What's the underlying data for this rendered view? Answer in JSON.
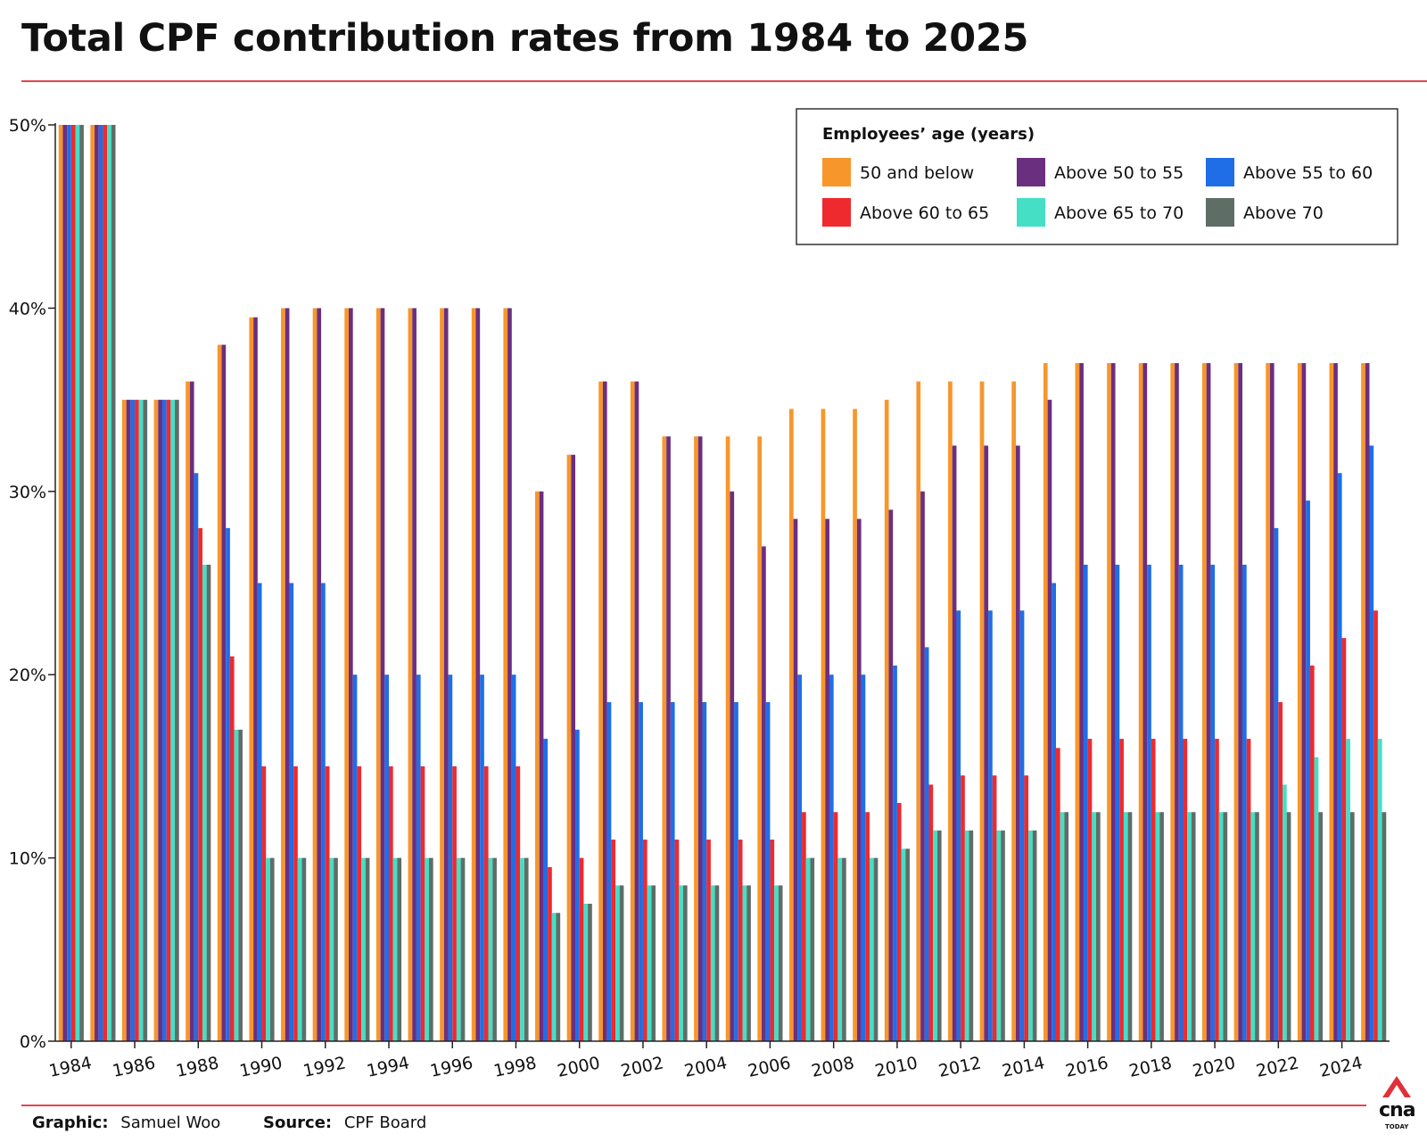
{
  "title": "Total CPF contribution rates from 1984 to 2025",
  "credits": {
    "graphic_label": "Graphic:",
    "graphic_value": "Samuel Woo",
    "source_label": "Source:",
    "source_value": "CPF Board"
  },
  "logo": {
    "text": "cna",
    "sub": "TODAY",
    "color": "#e0313a"
  },
  "chart_data": {
    "type": "bar",
    "title": "Total CPF contribution rates from 1984 to 2025",
    "xlabel": "",
    "ylabel": "",
    "ylim": [
      0,
      50
    ],
    "yticks": [
      "0%",
      "10%",
      "20%",
      "30%",
      "40%",
      "50%"
    ],
    "grid": false,
    "legend_title": "Employees’ age (years)",
    "legend_position": "top-right",
    "categories": [
      "1984",
      "1985",
      "1986",
      "1987",
      "1988",
      "1989",
      "1990",
      "1991",
      "1992",
      "1993",
      "1994",
      "1995",
      "1996",
      "1997",
      "1998",
      "1999",
      "2000",
      "2001",
      "2002",
      "2003",
      "2004",
      "2005",
      "2006",
      "2007",
      "2008",
      "2009",
      "2010",
      "2011",
      "2012",
      "2013",
      "2014",
      "2015",
      "2016",
      "2017",
      "2018",
      "2019",
      "2020",
      "2021",
      "2022",
      "2023",
      "2024",
      "2025"
    ],
    "xtick_labels": [
      "1984",
      "1986",
      "1988",
      "1990",
      "1992",
      "1994",
      "1996",
      "1998",
      "2000",
      "2002",
      "2004",
      "2006",
      "2008",
      "2010",
      "2012",
      "2014",
      "2016",
      "2018",
      "2020",
      "2022",
      "2024"
    ],
    "series": [
      {
        "name": "50 and below",
        "color": "#f7962b",
        "values": [
          50,
          50,
          35,
          35,
          36,
          38,
          39.5,
          40,
          40,
          40,
          40,
          40,
          40,
          40,
          40,
          30,
          32,
          36,
          36,
          33,
          33,
          33,
          33,
          34.5,
          34.5,
          34.5,
          35,
          36,
          36,
          36,
          36,
          37,
          37,
          37,
          37,
          37,
          37,
          37,
          37,
          37,
          37,
          37
        ]
      },
      {
        "name": "Above 50 to 55",
        "color": "#6b2f80",
        "values": [
          50,
          50,
          35,
          35,
          36,
          38,
          39.5,
          40,
          40,
          40,
          40,
          40,
          40,
          40,
          40,
          30,
          32,
          36,
          36,
          33,
          33,
          30,
          27,
          28.5,
          28.5,
          28.5,
          29,
          30,
          32.5,
          32.5,
          32.5,
          35,
          37,
          37,
          37,
          37,
          37,
          37,
          37,
          37,
          37,
          37
        ]
      },
      {
        "name": "Above 55 to 60",
        "color": "#1f6ee8",
        "values": [
          50,
          50,
          35,
          35,
          31,
          28,
          25,
          25,
          25,
          20,
          20,
          20,
          20,
          20,
          20,
          16.5,
          17,
          18.5,
          18.5,
          18.5,
          18.5,
          18.5,
          18.5,
          20,
          20,
          20,
          20.5,
          21.5,
          23.5,
          23.5,
          23.5,
          25,
          26,
          26,
          26,
          26,
          26,
          26,
          28,
          29.5,
          31,
          32.5
        ]
      },
      {
        "name": "Above 60 to 65",
        "color": "#ee2a2f",
        "values": [
          50,
          50,
          35,
          35,
          28,
          21,
          15,
          15,
          15,
          15,
          15,
          15,
          15,
          15,
          15,
          9.5,
          10,
          11,
          11,
          11,
          11,
          11,
          11,
          12.5,
          12.5,
          12.5,
          13,
          14,
          14.5,
          14.5,
          14.5,
          16,
          16.5,
          16.5,
          16.5,
          16.5,
          16.5,
          16.5,
          18.5,
          20.5,
          22,
          23.5
        ]
      },
      {
        "name": "Above 65 to 70",
        "color": "#45dfc6",
        "values": [
          50,
          50,
          35,
          35,
          26,
          17,
          10,
          10,
          10,
          10,
          10,
          10,
          10,
          10,
          10,
          7,
          7.5,
          8.5,
          8.5,
          8.5,
          8.5,
          8.5,
          8.5,
          10,
          10,
          10,
          10.5,
          11.5,
          11.5,
          11.5,
          11.5,
          12.5,
          12.5,
          12.5,
          12.5,
          12.5,
          12.5,
          12.5,
          14,
          15.5,
          16.5,
          16.5
        ]
      },
      {
        "name": "Above 70",
        "color": "#5e6e67",
        "values": [
          50,
          50,
          35,
          35,
          26,
          17,
          10,
          10,
          10,
          10,
          10,
          10,
          10,
          10,
          10,
          7,
          7.5,
          8.5,
          8.5,
          8.5,
          8.5,
          8.5,
          8.5,
          10,
          10,
          10,
          10.5,
          11.5,
          11.5,
          11.5,
          11.5,
          12.5,
          12.5,
          12.5,
          12.5,
          12.5,
          12.5,
          12.5,
          12.5,
          12.5,
          12.5,
          12.5
        ]
      }
    ]
  }
}
